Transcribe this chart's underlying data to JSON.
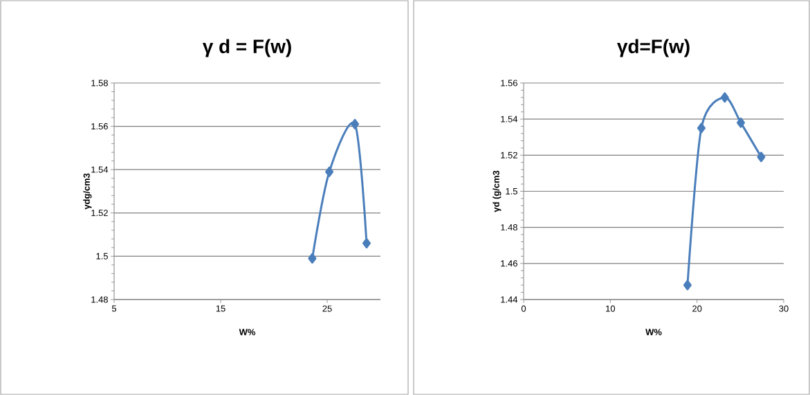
{
  "chart_data": [
    {
      "type": "line",
      "title": "γ d = F(w)",
      "xlabel": "W%",
      "ylabel": "γdg/cm3",
      "x": [
        23.6,
        25.2,
        27.6,
        28.7
      ],
      "series": [
        {
          "color": "#4a7ebb",
          "values": [
            1.499,
            1.539,
            1.561,
            1.506
          ]
        }
      ],
      "xlim": [
        5,
        30
      ],
      "xticks": [
        5,
        15,
        25
      ],
      "ylim": [
        1.48,
        1.58
      ],
      "yticks": [
        1.48,
        1.5,
        1.52,
        1.54,
        1.56,
        1.58
      ],
      "grid": "y",
      "marker": "diamond",
      "line_style": "solid"
    },
    {
      "type": "line",
      "title": "γd=F(w)",
      "xlabel": "W%",
      "ylabel": "γd (g/cm3",
      "x": [
        18.9,
        20.5,
        23.2,
        25.05,
        27.4
      ],
      "series": [
        {
          "color": "#4a7ebb",
          "values": [
            1.448,
            1.535,
            1.552,
            1.538,
            1.519
          ]
        }
      ],
      "xlim": [
        0,
        30
      ],
      "xticks": [
        0,
        10,
        20,
        30
      ],
      "ylim": [
        1.44,
        1.56
      ],
      "yticks": [
        1.44,
        1.46,
        1.48,
        1.5,
        1.52,
        1.54,
        1.56
      ],
      "grid": "y",
      "marker": "diamond",
      "line_style": "solid"
    }
  ]
}
